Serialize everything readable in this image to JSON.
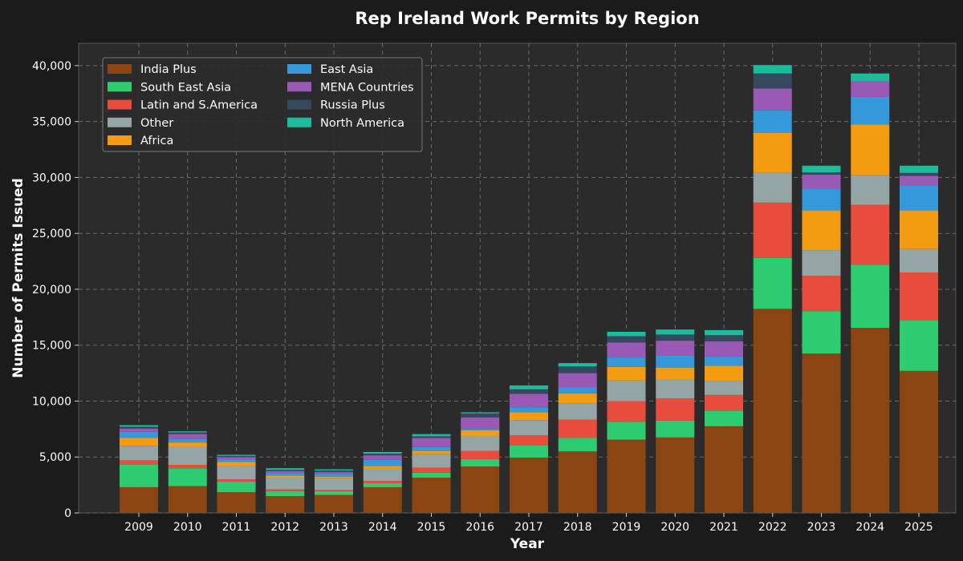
{
  "chart_data": {
    "type": "bar",
    "stacked": true,
    "title": "Rep Ireland Work Permits by Region",
    "xlabel": "Year",
    "ylabel": "Number of Permits Issued",
    "ylim": [
      0,
      42000
    ],
    "yticks": [
      0,
      5000,
      10000,
      15000,
      20000,
      25000,
      30000,
      35000,
      40000
    ],
    "ytick_labels": [
      "0",
      "5,000",
      "10,000",
      "15,000",
      "20,000",
      "25,000",
      "30,000",
      "35,000",
      "40,000"
    ],
    "grid": true,
    "legend_position": "top-left",
    "categories": [
      "2009",
      "2010",
      "2011",
      "2012",
      "2013",
      "2014",
      "2015",
      "2016",
      "2017",
      "2018",
      "2019",
      "2020",
      "2021",
      "2022",
      "2023",
      "2024",
      "2025"
    ],
    "series": [
      {
        "name": "India Plus",
        "color": "#8B4513",
        "values": [
          2300,
          2400,
          1850,
          1500,
          1600,
          2300,
          3150,
          4150,
          4950,
          5500,
          6550,
          6750,
          7750,
          18250,
          14250,
          16550,
          12700
        ]
      },
      {
        "name": "South East Asia",
        "color": "#2ECC71",
        "values": [
          2000,
          1600,
          950,
          450,
          350,
          350,
          450,
          650,
          1100,
          1200,
          1600,
          1500,
          1400,
          4550,
          3800,
          5650,
          4500
        ]
      },
      {
        "name": "Latin and S.America",
        "color": "#E74C3C",
        "values": [
          400,
          300,
          200,
          150,
          100,
          200,
          450,
          750,
          900,
          1650,
          1850,
          2000,
          1400,
          4950,
          3150,
          5350,
          4300
        ]
      },
      {
        "name": "Other",
        "color": "#95A5A6",
        "values": [
          1300,
          1650,
          1200,
          1050,
          1050,
          1100,
          1200,
          1300,
          1350,
          1450,
          1850,
          1650,
          1250,
          2650,
          2300,
          2650,
          2100
        ]
      },
      {
        "name": "Africa",
        "color": "#F39C12",
        "values": [
          700,
          350,
          350,
          200,
          150,
          250,
          300,
          550,
          700,
          900,
          1200,
          1100,
          1350,
          3600,
          3550,
          4550,
          3450
        ]
      },
      {
        "name": "East Asia",
        "color": "#3498DB",
        "values": [
          550,
          300,
          250,
          200,
          250,
          550,
          350,
          150,
          450,
          550,
          850,
          1050,
          850,
          2000,
          1950,
          2450,
          2250
        ]
      },
      {
        "name": "MENA Countries",
        "color": "#9B59B6",
        "values": [
          300,
          450,
          200,
          200,
          150,
          400,
          800,
          1000,
          1200,
          1250,
          1350,
          1350,
          1350,
          1950,
          1250,
          1400,
          850
        ]
      },
      {
        "name": "Russia Plus",
        "color": "#34495E",
        "values": [
          150,
          150,
          100,
          100,
          150,
          150,
          150,
          350,
          400,
          600,
          550,
          550,
          550,
          1350,
          200,
          0,
          250
        ]
      },
      {
        "name": "North America",
        "color": "#1ABC9C",
        "values": [
          150,
          100,
          100,
          150,
          100,
          150,
          200,
          100,
          350,
          300,
          400,
          450,
          450,
          750,
          600,
          700,
          650
        ]
      }
    ]
  }
}
